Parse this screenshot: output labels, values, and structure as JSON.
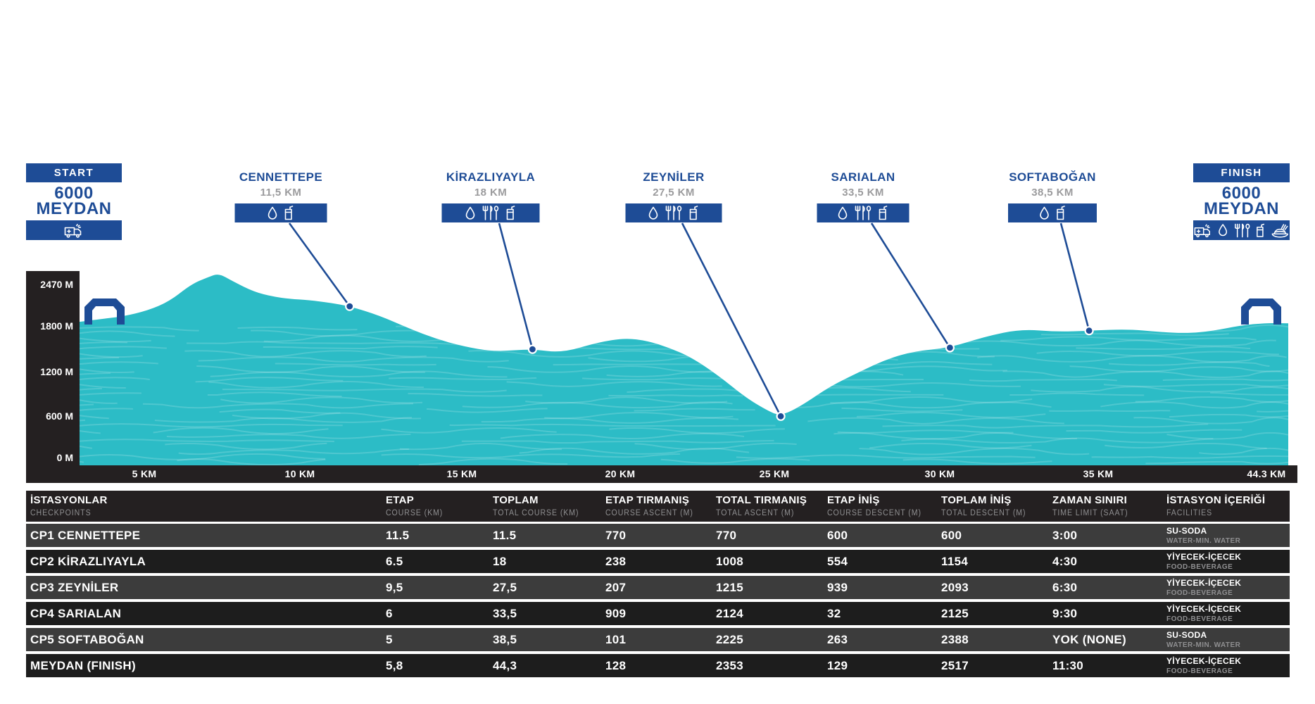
{
  "colors": {
    "brand_blue": "#1E4C96",
    "terrain_teal": "#2CBCC6",
    "axis_black": "#242021",
    "row_dark": "#1D1D1D",
    "row_light": "#3C3C3C",
    "distance_gray": "#9B9B9D"
  },
  "start": {
    "badge_label": "START",
    "title_line1": "6000",
    "title_line2": "MEYDAN",
    "facility_icons": [
      "ambulance-icon"
    ]
  },
  "finish": {
    "badge_label": "FINISH",
    "title_line1": "6000",
    "title_line2": "MEYDAN",
    "facility_icons": [
      "ambulance-icon",
      "water-drop-icon",
      "cutlery-icon",
      "cup-icon",
      "food-plate-icon"
    ]
  },
  "checkpoints": [
    {
      "name": "CENNETTEPE",
      "distance": "11,5 KM",
      "facility_icons": [
        "water-drop-icon",
        "cup-icon"
      ]
    },
    {
      "name": "KİRAZLIYAYLA",
      "distance": "18 KM",
      "facility_icons": [
        "water-drop-icon",
        "cutlery-icon",
        "cup-icon"
      ]
    },
    {
      "name": "ZEYNİLER",
      "distance": "27,5 KM",
      "facility_icons": [
        "water-drop-icon",
        "cutlery-icon",
        "cup-icon"
      ]
    },
    {
      "name": "SARIALAN",
      "distance": "33,5 KM",
      "facility_icons": [
        "water-drop-icon",
        "cutlery-icon",
        "cup-icon"
      ]
    },
    {
      "name": "SOFTABOĞAN",
      "distance": "38,5 KM",
      "facility_icons": [
        "water-drop-icon",
        "cup-icon"
      ]
    }
  ],
  "chart_data": {
    "type": "area",
    "title": "6000 MEYDAN",
    "x_ticks": [
      "5 KM",
      "10 KM",
      "15 KM",
      "20 KM",
      "25 KM",
      "30 KM",
      "35 KM",
      "44.3 KM"
    ],
    "y_ticks": [
      "2470 M",
      "1800 M",
      "1200 M",
      "600 M",
      "0 M"
    ],
    "xlim_km": [
      0,
      44.3
    ],
    "ylim_m": [
      0,
      2470
    ],
    "profile_km_elev_m": [
      [
        0,
        1845
      ],
      [
        0.8,
        1880
      ],
      [
        1.6,
        1915
      ],
      [
        2.5,
        1990
      ],
      [
        3.3,
        2110
      ],
      [
        4.1,
        2330
      ],
      [
        4.7,
        2420
      ],
      [
        5.1,
        2470
      ],
      [
        5.6,
        2370
      ],
      [
        6.4,
        2230
      ],
      [
        7.1,
        2170
      ],
      [
        7.7,
        2140
      ],
      [
        8.4,
        2125
      ],
      [
        9.2,
        2090
      ],
      [
        9.9,
        2045
      ],
      [
        11.0,
        1925
      ],
      [
        12.1,
        1755
      ],
      [
        13.1,
        1620
      ],
      [
        14.1,
        1525
      ],
      [
        15.1,
        1465
      ],
      [
        15.9,
        1475
      ],
      [
        16.6,
        1490
      ],
      [
        17.7,
        1445
      ],
      [
        19.0,
        1580
      ],
      [
        20.0,
        1635
      ],
      [
        20.8,
        1600
      ],
      [
        21.6,
        1510
      ],
      [
        22.4,
        1390
      ],
      [
        23.4,
        1155
      ],
      [
        24.4,
        870
      ],
      [
        25.2,
        700
      ],
      [
        25.7,
        625
      ],
      [
        26.5,
        770
      ],
      [
        27.5,
        1010
      ],
      [
        28.6,
        1200
      ],
      [
        29.6,
        1365
      ],
      [
        30.6,
        1465
      ],
      [
        31.9,
        1510
      ],
      [
        33.2,
        1655
      ],
      [
        34.5,
        1750
      ],
      [
        35.8,
        1715
      ],
      [
        37.0,
        1730
      ],
      [
        38.4,
        1750
      ],
      [
        39.5,
        1715
      ],
      [
        40.6,
        1695
      ],
      [
        41.5,
        1725
      ],
      [
        42.6,
        1800
      ],
      [
        43.5,
        1830
      ],
      [
        44.3,
        1825
      ]
    ],
    "markers": [
      {
        "name": "CENNETTEPE",
        "label": "11,5 KM",
        "km_drawn": 9.9,
        "elev_m": 2045
      },
      {
        "name": "KİRAZLIYAYLA",
        "label": "18 KM",
        "km_drawn": 16.6,
        "elev_m": 1490
      },
      {
        "name": "ZEYNİLER",
        "label": "27,5 KM",
        "km_drawn": 25.7,
        "elev_m": 625
      },
      {
        "name": "SARIALAN",
        "label": "33,5 KM",
        "km_drawn": 31.9,
        "elev_m": 1510
      },
      {
        "name": "SOFTABOĞAN",
        "label": "38,5 KM",
        "km_drawn": 37.0,
        "elev_m": 1730
      }
    ]
  },
  "table": {
    "columns": [
      {
        "main": "İSTASYONLAR",
        "sub": "CHECKPOINTS"
      },
      {
        "main": "ETAP",
        "sub": "COURSE (KM)"
      },
      {
        "main": "TOPLAM",
        "sub": "TOTAL COURSE (KM)"
      },
      {
        "main": "ETAP TIRMANIŞ",
        "sub": "COURSE ASCENT (M)"
      },
      {
        "main": "TOTAL TIRMANIŞ",
        "sub": "TOTAL ASCENT (M)"
      },
      {
        "main": "ETAP İNİŞ",
        "sub": "COURSE DESCENT (M)"
      },
      {
        "main": "TOPLAM İNİŞ",
        "sub": "TOTAL DESCENT (M)"
      },
      {
        "main": "ZAMAN SINIRI",
        "sub": "TIME LIMIT (SAAT)"
      },
      {
        "main": "İSTASYON İÇERİĞİ",
        "sub": "FACILITIES"
      }
    ],
    "rows": [
      {
        "checkpoint": "CP1 CENNETTEPE",
        "values": [
          "11.5",
          "11.5",
          "770",
          "770",
          "600",
          "600",
          "3:00"
        ],
        "facility": {
          "main": "SU-SODA",
          "sub": "WATER-MIN. WATER"
        }
      },
      {
        "checkpoint": "CP2 KİRAZLIYAYLA",
        "values": [
          "6.5",
          "18",
          "238",
          "1008",
          "554",
          "1154",
          "4:30"
        ],
        "facility": {
          "main": "YİYECEK-İÇECEK",
          "sub": "FOOD-BEVERAGE"
        }
      },
      {
        "checkpoint": "CP3 ZEYNİLER",
        "values": [
          "9,5",
          "27,5",
          "207",
          "1215",
          "939",
          "2093",
          "6:30"
        ],
        "facility": {
          "main": "YİYECEK-İÇECEK",
          "sub": "FOOD-BEVERAGE"
        }
      },
      {
        "checkpoint": "CP4 SARIALAN",
        "values": [
          "6",
          "33,5",
          "909",
          "2124",
          "32",
          "2125",
          "9:30"
        ],
        "facility": {
          "main": "YİYECEK-İÇECEK",
          "sub": "FOOD-BEVERAGE"
        }
      },
      {
        "checkpoint": "CP5 SOFTABOĞAN",
        "values": [
          "5",
          "38,5",
          "101",
          "2225",
          "263",
          "2388",
          "YOK (NONE)"
        ],
        "facility": {
          "main": "SU-SODA",
          "sub": "WATER-MIN. WATER"
        }
      },
      {
        "checkpoint": "MEYDAN (FINISH)",
        "values": [
          "5,8",
          "44,3",
          "128",
          "2353",
          "129",
          "2517",
          "11:30"
        ],
        "facility": {
          "main": "YİYECEK-İÇECEK",
          "sub": "FOOD-BEVERAGE"
        }
      }
    ]
  }
}
